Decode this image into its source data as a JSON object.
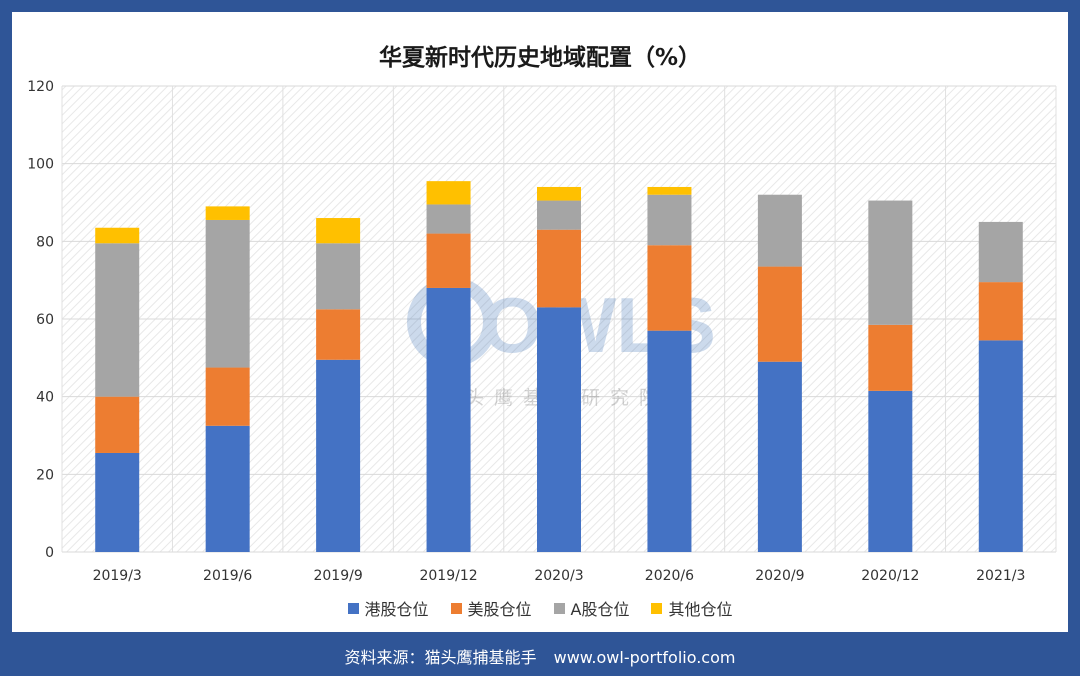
{
  "chart_data": {
    "type": "bar",
    "stacked": true,
    "title": "华夏新时代历史地域配置（%）",
    "categories": [
      "2019/3",
      "2019/6",
      "2019/9",
      "2019/12",
      "2020/3",
      "2020/6",
      "2020/9",
      "2020/12",
      "2021/3"
    ],
    "series": [
      {
        "name": "港股仓位",
        "color": "#4472C4",
        "values": [
          25.5,
          32.5,
          49.5,
          68.0,
          63.0,
          57.0,
          49.0,
          41.5,
          54.5
        ]
      },
      {
        "name": "美股仓位",
        "color": "#ED7D31",
        "values": [
          14.5,
          15.0,
          13.0,
          14.0,
          20.0,
          22.0,
          24.5,
          17.0,
          15.0
        ]
      },
      {
        "name": "A股仓位",
        "color": "#A5A5A5",
        "values": [
          39.5,
          38.0,
          17.0,
          7.5,
          7.5,
          13.0,
          18.5,
          32.0,
          15.5
        ]
      },
      {
        "name": "其他仓位",
        "color": "#FFC000",
        "values": [
          4.0,
          3.5,
          6.5,
          6.0,
          3.5,
          2.0,
          0.0,
          0.0,
          0.0
        ]
      }
    ],
    "yticks": [
      0,
      20,
      40,
      60,
      80,
      100,
      120
    ],
    "ylim": [
      0,
      120
    ],
    "xlabel": "",
    "ylabel": "",
    "legend_position": "bottom"
  },
  "watermark": {
    "logo_text": "OWLS",
    "subtitle": "猫头鹰基金研究院"
  },
  "footer": {
    "source": "资料来源：猫头鹰捕基能手",
    "url": "www.owl-portfolio.com"
  }
}
